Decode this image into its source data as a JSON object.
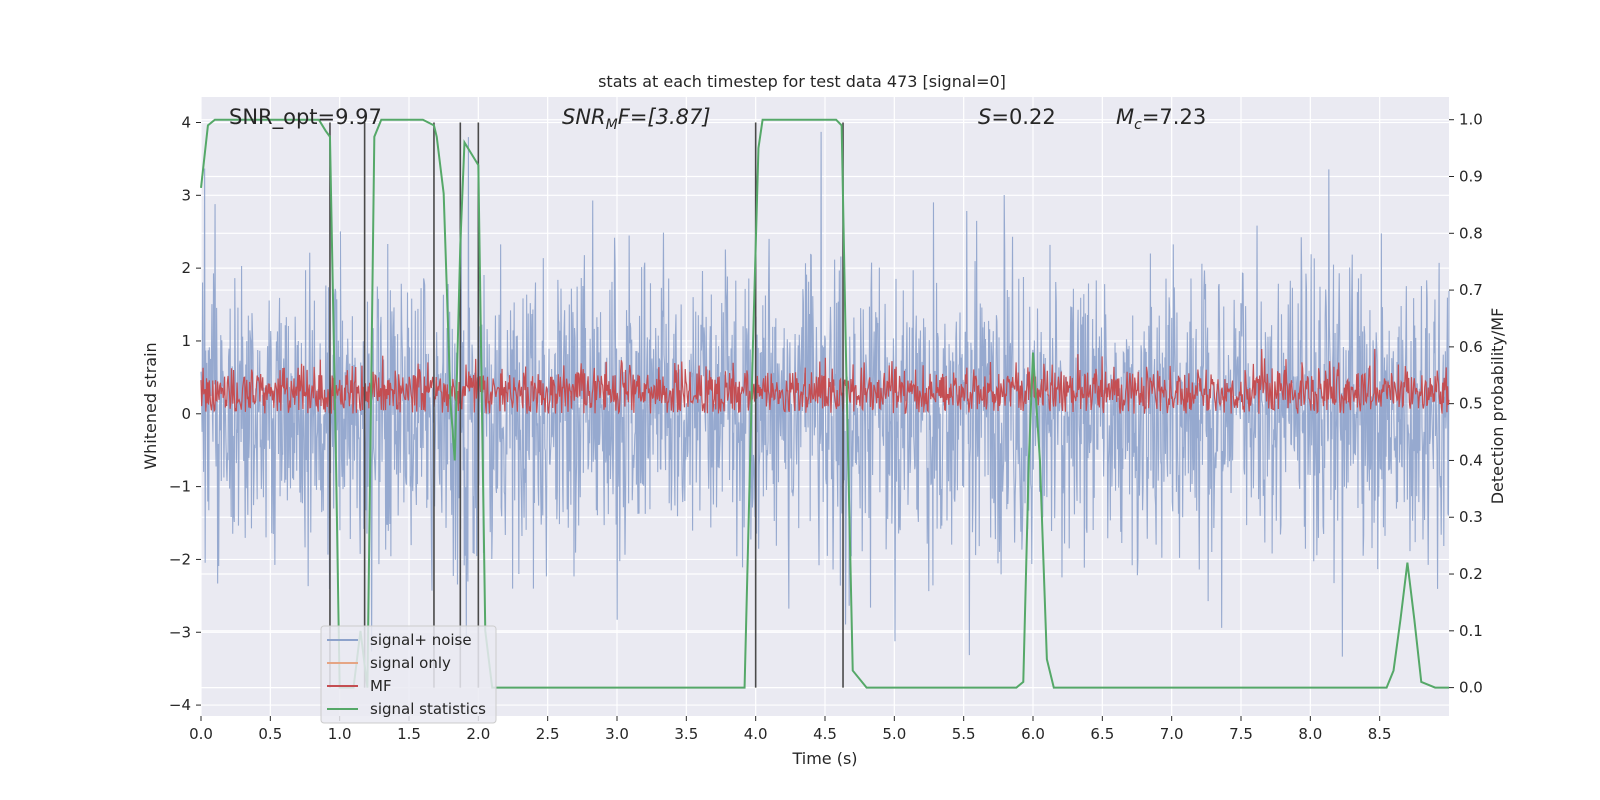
{
  "chart_data": {
    "type": "line",
    "title": "stats at each timestep for test data 473 [signal=0]",
    "xlabel": "Time (s)",
    "ylabel_left": "Whitened strain",
    "ylabel_right": "Detection probability/MF",
    "xlim": [
      0.0,
      9.0
    ],
    "ylim_left": [
      -4.15,
      4.35
    ],
    "ylim_right": [
      -0.05,
      1.04
    ],
    "xticks": [
      0.0,
      0.5,
      1.0,
      1.5,
      2.0,
      2.5,
      3.0,
      3.5,
      4.0,
      4.5,
      5.0,
      5.5,
      6.0,
      6.5,
      7.0,
      7.5,
      8.0,
      8.5
    ],
    "xtick_labels": [
      "0.0",
      "0.5",
      "1.0",
      "1.5",
      "2.0",
      "2.5",
      "3.0",
      "3.5",
      "4.0",
      "4.5",
      "5.0",
      "5.5",
      "6.0",
      "6.5",
      "7.0",
      "7.5",
      "8.0",
      "8.5"
    ],
    "yticks_left": [
      4,
      3,
      2,
      1,
      0,
      -1,
      -2,
      -3,
      -4
    ],
    "ytick_labels_left": [
      "4",
      "3",
      "2",
      "1",
      "0",
      "−1",
      "−2",
      "−3",
      "−4"
    ],
    "yticks_right": [
      1.0,
      0.9,
      0.8,
      0.7,
      0.6,
      0.5,
      0.4,
      0.3,
      0.2,
      0.1,
      0.0
    ],
    "ytick_labels_right": [
      "1.0",
      "0.9",
      "0.8",
      "0.7",
      "0.6",
      "0.5",
      "0.4",
      "0.3",
      "0.2",
      "0.1",
      "0.0"
    ],
    "grid": true,
    "legend_placement": "lower-left",
    "colors": {
      "signal_noise": "#8da2cb",
      "signal_only": "#e5a585",
      "mf": "#c44e52",
      "signal_statistics": "#55a868",
      "vlines": "#4a4a4a",
      "plot_bg": "#eaeaf2",
      "grid": "#ffffff"
    },
    "annotations": {
      "snr_opt": "SNR_opt=9.97",
      "snr_mf_main": "SNR",
      "snr_mf_sub": "M",
      "snr_mf_tail": "F=[3.87]",
      "s_main": "S",
      "s_tail": "=0.22",
      "mc_main": "M",
      "mc_sub": "c",
      "mc_tail": "=7.23"
    },
    "series": [
      {
        "name": "signal+ noise",
        "axis": "left",
        "description_range": [
          -4.0,
          4.0
        ],
        "envelope_typical": [
          -2.3,
          2.3
        ]
      },
      {
        "name": "signal only",
        "axis": "left",
        "x": [],
        "y": []
      },
      {
        "name": "MF",
        "axis": "left",
        "range": [
          0.0,
          1.0
        ]
      },
      {
        "name": "signal statistics",
        "axis": "right",
        "x": [
          0.0,
          0.05,
          0.1,
          0.15,
          0.2,
          0.3,
          0.4,
          0.5,
          0.6,
          0.7,
          0.8,
          0.85,
          0.9,
          0.93,
          0.97,
          1.0,
          1.05,
          1.1,
          1.15,
          1.2,
          1.25,
          1.3,
          1.4,
          1.5,
          1.6,
          1.68,
          1.7,
          1.75,
          1.8,
          1.83,
          1.87,
          1.9,
          1.95,
          2.0,
          2.05,
          2.1,
          2.2,
          2.5,
          3.0,
          3.5,
          3.92,
          3.98,
          4.02,
          4.05,
          4.1,
          4.2,
          4.5,
          4.55,
          4.58,
          4.62,
          4.65,
          4.7,
          4.8,
          5.0,
          5.5,
          5.88,
          5.93,
          5.97,
          6.0,
          6.05,
          6.1,
          6.15,
          6.5,
          7.0,
          7.5,
          8.0,
          8.5,
          8.55,
          8.6,
          8.65,
          8.7,
          8.75,
          8.8,
          8.9,
          9.0
        ],
        "y": [
          0.88,
          0.99,
          1.0,
          1.0,
          1.0,
          1.0,
          1.0,
          1.0,
          1.0,
          1.0,
          1.0,
          1.0,
          0.98,
          0.97,
          0.45,
          0.0,
          0.0,
          0.0,
          0.1,
          0.0,
          0.97,
          1.0,
          1.0,
          1.0,
          1.0,
          0.99,
          0.97,
          0.87,
          0.5,
          0.4,
          0.78,
          0.96,
          0.94,
          0.92,
          0.1,
          0.0,
          0.0,
          0.0,
          0.0,
          0.0,
          0.0,
          0.6,
          0.95,
          1.0,
          1.0,
          1.0,
          1.0,
          1.0,
          1.0,
          0.99,
          0.6,
          0.03,
          0.0,
          0.0,
          0.0,
          0.0,
          0.01,
          0.4,
          0.59,
          0.4,
          0.05,
          0.0,
          0.0,
          0.0,
          0.0,
          0.0,
          0.0,
          0.0,
          0.03,
          0.12,
          0.22,
          0.12,
          0.01,
          0.0,
          0.0
        ]
      }
    ],
    "vertical_lines_x": [
      0.93,
      1.18,
      1.68,
      1.87,
      2.0,
      4.0,
      4.63
    ],
    "legend": [
      "signal+ noise",
      "signal only",
      "MF",
      "signal statistics"
    ]
  }
}
